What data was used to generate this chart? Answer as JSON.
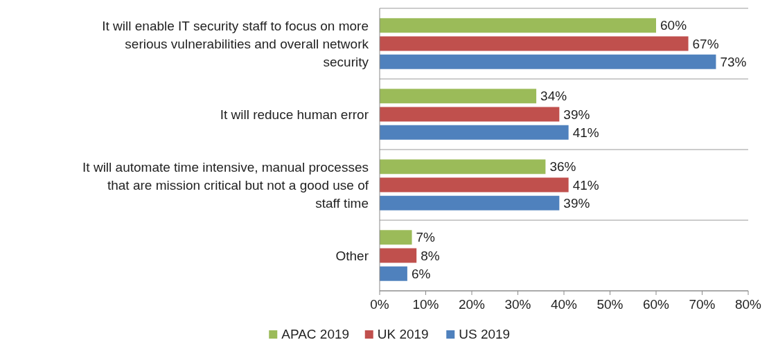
{
  "chart_data": {
    "type": "bar",
    "orientation": "horizontal",
    "categories": [
      "It will enable IT security staff to focus on more serious vulnerabilities and overall network security",
      "It will reduce human error",
      "It will automate time intensive, manual processes that are mission critical but not a good use of staff time",
      "Other"
    ],
    "series": [
      {
        "name": "APAC 2019",
        "color": "#9bbb59",
        "values": [
          60,
          34,
          36,
          7
        ],
        "value_labels": [
          "60%",
          "34%",
          "36%",
          "7%"
        ]
      },
      {
        "name": "UK 2019",
        "color": "#c0504d",
        "values": [
          67,
          39,
          41,
          8
        ],
        "value_labels": [
          "67%",
          "39%",
          "41%",
          "8%"
        ]
      },
      {
        "name": "US 2019",
        "color": "#4f81bd",
        "values": [
          73,
          41,
          39,
          6
        ],
        "value_labels": [
          "73%",
          "41%",
          "39%",
          "6%"
        ]
      }
    ],
    "xlim": [
      0,
      80
    ],
    "xticks": [
      {
        "value": 0,
        "label": "0%"
      },
      {
        "value": 10,
        "label": "10%"
      },
      {
        "value": 20,
        "label": "20%"
      },
      {
        "value": 30,
        "label": "30%"
      },
      {
        "value": 40,
        "label": "40%"
      },
      {
        "value": 50,
        "label": "50%"
      },
      {
        "value": 60,
        "label": "60%"
      },
      {
        "value": 70,
        "label": "70%"
      },
      {
        "value": 80,
        "label": "80%"
      }
    ],
    "grid": false,
    "legend": "bottom"
  }
}
